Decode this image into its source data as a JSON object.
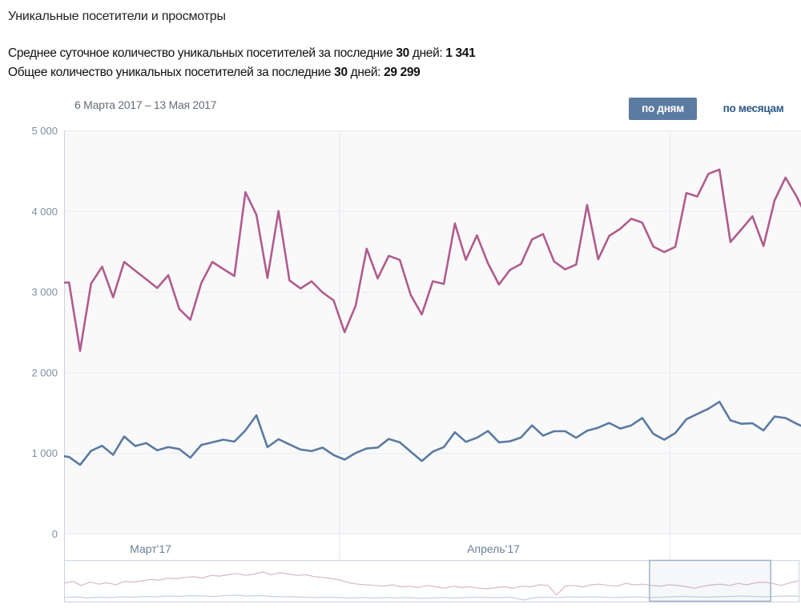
{
  "header": {
    "title": "Уникальные посетители и просмотры",
    "avg_prefix": "Среднее суточное количество уникальных посетителей за последние ",
    "avg_days": "30",
    "avg_mid": " дней: ",
    "avg_value": "1 341",
    "total_prefix": "Общее количество уникальных посетителей за последние ",
    "total_days": "30",
    "total_mid": " дней: ",
    "total_value": "29 299"
  },
  "controls": {
    "date_range": "6 Марта 2017 – 13 Мая 2017",
    "by_days": "по дням",
    "by_months": "по месяцам",
    "active": "by_days"
  },
  "chart_data": {
    "type": "line",
    "ylim": [
      0,
      5000
    ],
    "xlim": [
      -0.45,
      66.4
    ],
    "yticks": [
      0,
      1000,
      2000,
      3000,
      4000,
      5000
    ],
    "ytick_labels": [
      "0",
      "1 000",
      "2 000",
      "3 000",
      "4 000",
      "5 000"
    ],
    "month_labels": [
      {
        "label": "Март'17",
        "center": 7.4
      },
      {
        "label": "Апрель'17",
        "center": 38.5
      }
    ],
    "month_boundaries": [
      24.5,
      54.5
    ],
    "grid": true,
    "series": [
      {
        "name": "views",
        "color": "#b05c8e",
        "values": [
          3110,
          3114,
          2267,
          3099,
          3310,
          2931,
          3369,
          3260,
          3155,
          3046,
          3204,
          2786,
          2652,
          3106,
          3369,
          3280,
          3194,
          4234,
          3954,
          3171,
          4000,
          3139,
          3040,
          3129,
          2990,
          2892,
          2497,
          2826,
          3533,
          3165,
          3444,
          3395,
          2958,
          2717,
          3129,
          3096,
          3846,
          3395,
          3698,
          3352,
          3089,
          3270,
          3343,
          3648,
          3714,
          3375,
          3277,
          3336,
          4076,
          3402,
          3691,
          3780,
          3905,
          3856,
          3560,
          3491,
          3556,
          4224,
          4181,
          4461,
          4514,
          3616,
          3774,
          3935,
          3566,
          4132,
          4415,
          4181,
          3900
        ]
      },
      {
        "name": "unique_visitors",
        "color": "#5b7ba1",
        "values": [
          970,
          950,
          852,
          1026,
          1089,
          977,
          1204,
          1086,
          1122,
          1033,
          1072,
          1049,
          941,
          1099,
          1132,
          1165,
          1141,
          1280,
          1467,
          1072,
          1171,
          1105,
          1043,
          1023,
          1066,
          974,
          918,
          1000,
          1056,
          1066,
          1174,
          1132,
          1016,
          901,
          1016,
          1072,
          1257,
          1138,
          1188,
          1273,
          1132,
          1145,
          1191,
          1342,
          1214,
          1270,
          1270,
          1188,
          1276,
          1313,
          1372,
          1303,
          1342,
          1434,
          1237,
          1165,
          1247,
          1418,
          1484,
          1549,
          1635,
          1405,
          1362,
          1368,
          1280,
          1451,
          1434,
          1362,
          1300
        ]
      }
    ],
    "series_start_index": -1,
    "navigator": {
      "selection": [
        0.797,
        0.962
      ],
      "views": [
        55,
        60,
        48,
        58,
        52,
        56,
        50,
        60,
        58,
        62,
        66,
        64,
        70,
        68,
        72,
        74,
        70,
        78,
        76,
        80,
        84,
        78,
        82,
        88,
        80,
        86,
        82,
        78,
        80,
        74,
        72,
        68,
        64,
        56,
        52,
        50,
        48,
        46,
        50,
        44,
        46,
        42,
        48,
        44,
        40,
        46,
        42,
        44,
        40,
        38,
        42,
        44,
        40,
        46,
        44,
        50,
        48,
        20,
        46,
        48,
        44,
        50,
        52,
        48,
        46,
        54,
        50,
        52,
        48,
        46,
        50,
        48,
        44,
        40,
        46,
        50,
        52,
        48,
        54,
        50,
        56,
        58,
        54,
        48,
        56,
        62
      ],
      "visitors": [
        10,
        12,
        9,
        11,
        10,
        12,
        11,
        13,
        12,
        14,
        13,
        15,
        14,
        13,
        15,
        16,
        14,
        15,
        13,
        12,
        12,
        11,
        10,
        11,
        10,
        9,
        10,
        9,
        10,
        9,
        10,
        8,
        9,
        10,
        9,
        10,
        11,
        10,
        10,
        11,
        4,
        10,
        11,
        10,
        12,
        11,
        12,
        11,
        10,
        11,
        12,
        10,
        11,
        12,
        13,
        12,
        11,
        12,
        13,
        14,
        13,
        12,
        13,
        14,
        13
      ]
    }
  }
}
